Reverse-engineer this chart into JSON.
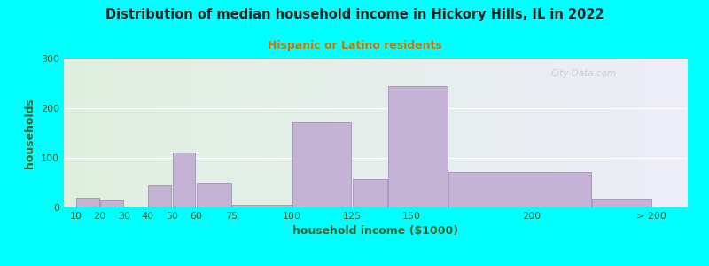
{
  "title": "Distribution of median household income in Hickory Hills, IL in 2022",
  "subtitle": "Hispanic or Latino residents",
  "xlabel": "household income ($1000)",
  "ylabel": "households",
  "background_outer": "#00FFFF",
  "bar_color": "#c5b3d5",
  "bar_edge_color": "#a090b8",
  "title_color": "#222222",
  "subtitle_color": "#cc7700",
  "xlabel_color": "#336633",
  "ylabel_color": "#336633",
  "tick_label_color": "#336633",
  "axis_tick_color": "#336633",
  "ylim": [
    0,
    300
  ],
  "yticks": [
    0,
    100,
    200,
    300
  ],
  "watermark": "City-Data.com",
  "edges": [
    10,
    20,
    30,
    40,
    50,
    60,
    75,
    100,
    125,
    150,
    200,
    225,
    250
  ],
  "bar_lefts": [
    10,
    20,
    30,
    40,
    50,
    60,
    75,
    100,
    125,
    140,
    165,
    225
  ],
  "bar_widths": [
    10,
    10,
    10,
    10,
    10,
    15,
    25,
    25,
    15,
    25,
    60,
    25
  ],
  "values": [
    20,
    15,
    2,
    45,
    110,
    50,
    5,
    172,
    58,
    244,
    72,
    18
  ],
  "xtick_positions": [
    10,
    20,
    30,
    40,
    50,
    60,
    75,
    100,
    125,
    150,
    200,
    250
  ],
  "xtick_labels": [
    "10",
    "20",
    "30",
    "40",
    "50",
    "60",
    "75",
    "100",
    "125",
    "150",
    "200",
    "> 200"
  ],
  "xlim": [
    5,
    265
  ]
}
